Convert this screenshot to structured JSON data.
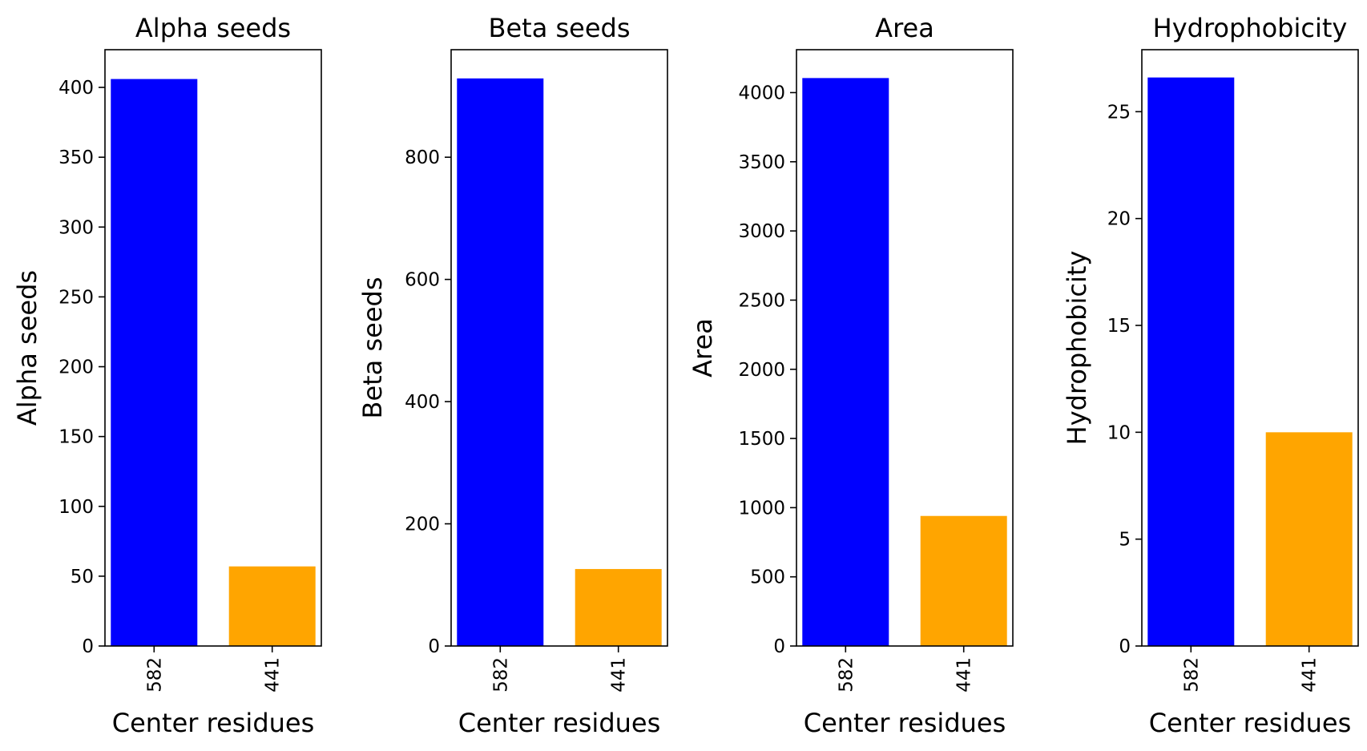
{
  "chart_data": [
    {
      "type": "bar",
      "title": "Alpha seeds",
      "xlabel": "Center residues",
      "ylabel": "Alpha seeds",
      "categories": [
        "582",
        "441"
      ],
      "values": [
        406,
        57
      ],
      "colors": [
        "#0000ff",
        "#ffa500"
      ],
      "ylim": [
        0,
        427
      ],
      "yticks": [
        0,
        50,
        100,
        150,
        200,
        250,
        300,
        350,
        400
      ],
      "grid": false
    },
    {
      "type": "bar",
      "title": "Beta seeds",
      "xlabel": "Center residues",
      "ylabel": "Beta seeds",
      "categories": [
        "582",
        "441"
      ],
      "values": [
        929,
        126
      ],
      "colors": [
        "#0000ff",
        "#ffa500"
      ],
      "ylim": [
        0,
        976
      ],
      "yticks": [
        0,
        200,
        400,
        600,
        800
      ],
      "grid": false
    },
    {
      "type": "bar",
      "title": "Area",
      "xlabel": "Center residues",
      "ylabel": "Area",
      "categories": [
        "582",
        "441"
      ],
      "values": [
        4105,
        940
      ],
      "colors": [
        "#0000ff",
        "#ffa500"
      ],
      "ylim": [
        0,
        4310
      ],
      "yticks": [
        0,
        500,
        1000,
        1500,
        2000,
        2500,
        3000,
        3500,
        4000
      ],
      "grid": false
    },
    {
      "type": "bar",
      "title": "Hydrophobicity",
      "xlabel": "Center residues",
      "ylabel": "Hydrophobicity",
      "categories": [
        "582",
        "441"
      ],
      "values": [
        26.6,
        10
      ],
      "colors": [
        "#0000ff",
        "#ffa500"
      ],
      "ylim": [
        0,
        27.9
      ],
      "yticks": [
        0,
        5,
        10,
        15,
        20,
        25
      ],
      "grid": false
    }
  ]
}
